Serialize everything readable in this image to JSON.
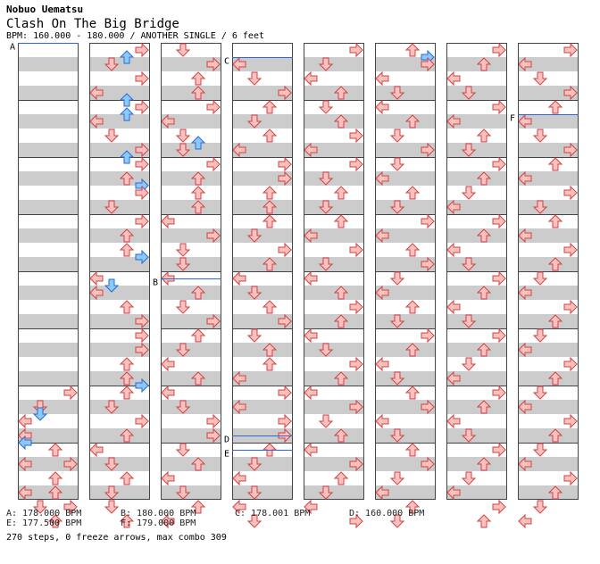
{
  "header": {
    "artist": "Nobuo Uematsu",
    "title": "Clash On The Big Bridge",
    "info": "BPM: 160.000 - 180.000 / ANOTHER SINGLE / 6 feet"
  },
  "colors": {
    "stripe_gray": "#cccccc",
    "border": "#444444",
    "red_fill": "#ffc0c0",
    "red_stroke": "#cc4444",
    "blue_fill": "#88ccff",
    "blue_stroke": "#3366cc",
    "bpm_line": "#3366cc"
  },
  "bpm_markers": [
    {
      "label": "A",
      "col": 0,
      "row": 0
    },
    {
      "label": "B",
      "col": 2,
      "row": 33
    },
    {
      "label": "C",
      "col": 3,
      "row": 2
    },
    {
      "label": "D",
      "col": 3,
      "row": 55
    },
    {
      "label": "E",
      "col": 3,
      "row": 57
    },
    {
      "label": "F",
      "col": 7,
      "row": 10
    }
  ],
  "legend": [
    {
      "text": "A: 178.000 BPM",
      "pos": 0
    },
    {
      "text": "B: 180.000 BPM",
      "pos": 1
    },
    {
      "text": "C: 178.001 BPM",
      "pos": 2
    },
    {
      "text": "D: 160.000 BPM",
      "pos": 3
    },
    {
      "text": "E: 177.500 BPM",
      "pos": 4
    },
    {
      "text": "F: 179.000 BPM",
      "pos": 5
    }
  ],
  "summary": "270 steps, 0 freeze arrows, max combo 309",
  "columns": [
    [
      [
        48,
        3
      ],
      [
        50,
        1
      ],
      [
        51,
        1
      ],
      [
        52,
        0
      ],
      [
        54,
        0
      ],
      [
        55,
        0
      ],
      [
        56,
        2
      ],
      [
        58,
        3
      ],
      [
        58,
        0
      ],
      [
        60,
        2
      ],
      [
        62,
        2
      ],
      [
        62,
        0
      ],
      [
        64,
        3
      ],
      [
        64,
        1
      ],
      [
        66,
        2
      ]
    ],
    [
      [
        0,
        3
      ],
      [
        1,
        2
      ],
      [
        2,
        1
      ],
      [
        4,
        3
      ],
      [
        6,
        0
      ],
      [
        7,
        2
      ],
      [
        8,
        3
      ],
      [
        9,
        2
      ],
      [
        10,
        0
      ],
      [
        12,
        1
      ],
      [
        14,
        3
      ],
      [
        15,
        2
      ],
      [
        16,
        3
      ],
      [
        18,
        2
      ],
      [
        19,
        3
      ],
      [
        20,
        3
      ],
      [
        22,
        1
      ],
      [
        24,
        3
      ],
      [
        26,
        2
      ],
      [
        28,
        2
      ],
      [
        29,
        3
      ],
      [
        32,
        0
      ],
      [
        33,
        1
      ],
      [
        34,
        0
      ],
      [
        36,
        2
      ],
      [
        38,
        3
      ],
      [
        40,
        3
      ],
      [
        42,
        3
      ],
      [
        44,
        2
      ],
      [
        46,
        2
      ],
      [
        47,
        3
      ],
      [
        48,
        2
      ],
      [
        50,
        1
      ],
      [
        52,
        3
      ],
      [
        54,
        2
      ],
      [
        56,
        0
      ],
      [
        58,
        1
      ],
      [
        60,
        2
      ],
      [
        62,
        1
      ],
      [
        64,
        1
      ],
      [
        66,
        2
      ]
    ],
    [
      [
        0,
        1
      ],
      [
        2,
        3
      ],
      [
        4,
        2
      ],
      [
        6,
        2
      ],
      [
        8,
        3
      ],
      [
        10,
        0
      ],
      [
        12,
        1
      ],
      [
        13,
        2
      ],
      [
        14,
        1
      ],
      [
        16,
        3
      ],
      [
        18,
        2
      ],
      [
        20,
        2
      ],
      [
        22,
        2
      ],
      [
        24,
        0
      ],
      [
        26,
        3
      ],
      [
        28,
        1
      ],
      [
        30,
        1
      ],
      [
        32,
        0
      ],
      [
        34,
        2
      ],
      [
        36,
        1
      ],
      [
        38,
        3
      ],
      [
        40,
        2
      ],
      [
        42,
        1
      ],
      [
        44,
        0
      ],
      [
        46,
        2
      ],
      [
        48,
        0
      ],
      [
        50,
        1
      ],
      [
        52,
        3
      ],
      [
        54,
        3
      ],
      [
        56,
        1
      ],
      [
        58,
        2
      ],
      [
        60,
        0
      ],
      [
        62,
        1
      ],
      [
        64,
        2
      ],
      [
        66,
        0
      ]
    ],
    [
      [
        2,
        0
      ],
      [
        4,
        1
      ],
      [
        6,
        3
      ],
      [
        8,
        2
      ],
      [
        10,
        1
      ],
      [
        12,
        2
      ],
      [
        14,
        0
      ],
      [
        16,
        3
      ],
      [
        18,
        3
      ],
      [
        20,
        2
      ],
      [
        22,
        2
      ],
      [
        24,
        2
      ],
      [
        26,
        1
      ],
      [
        28,
        3
      ],
      [
        30,
        2
      ],
      [
        32,
        0
      ],
      [
        34,
        1
      ],
      [
        36,
        2
      ],
      [
        38,
        3
      ],
      [
        40,
        1
      ],
      [
        42,
        2
      ],
      [
        44,
        2
      ],
      [
        46,
        0
      ],
      [
        48,
        3
      ],
      [
        50,
        0
      ],
      [
        52,
        3
      ],
      [
        54,
        3
      ],
      [
        56,
        2
      ],
      [
        58,
        1
      ],
      [
        60,
        0
      ],
      [
        62,
        1
      ],
      [
        64,
        0
      ],
      [
        66,
        1
      ]
    ],
    [
      [
        0,
        3
      ],
      [
        2,
        1
      ],
      [
        4,
        0
      ],
      [
        6,
        2
      ],
      [
        8,
        1
      ],
      [
        10,
        2
      ],
      [
        12,
        3
      ],
      [
        14,
        0
      ],
      [
        16,
        3
      ],
      [
        18,
        1
      ],
      [
        20,
        2
      ],
      [
        22,
        1
      ],
      [
        24,
        2
      ],
      [
        26,
        0
      ],
      [
        28,
        3
      ],
      [
        30,
        1
      ],
      [
        32,
        0
      ],
      [
        34,
        2
      ],
      [
        36,
        3
      ],
      [
        38,
        2
      ],
      [
        40,
        0
      ],
      [
        42,
        1
      ],
      [
        44,
        3
      ],
      [
        46,
        2
      ],
      [
        48,
        0
      ],
      [
        50,
        3
      ],
      [
        52,
        1
      ],
      [
        54,
        2
      ],
      [
        56,
        0
      ],
      [
        58,
        3
      ],
      [
        60,
        2
      ],
      [
        62,
        1
      ],
      [
        64,
        0
      ],
      [
        66,
        3
      ]
    ],
    [
      [
        0,
        2
      ],
      [
        1,
        3
      ],
      [
        2,
        3
      ],
      [
        4,
        0
      ],
      [
        6,
        1
      ],
      [
        8,
        0
      ],
      [
        10,
        2
      ],
      [
        12,
        1
      ],
      [
        14,
        3
      ],
      [
        16,
        1
      ],
      [
        18,
        0
      ],
      [
        20,
        2
      ],
      [
        22,
        1
      ],
      [
        24,
        3
      ],
      [
        26,
        0
      ],
      [
        28,
        2
      ],
      [
        30,
        3
      ],
      [
        32,
        1
      ],
      [
        34,
        0
      ],
      [
        36,
        2
      ],
      [
        38,
        1
      ],
      [
        40,
        3
      ],
      [
        42,
        2
      ],
      [
        44,
        0
      ],
      [
        46,
        1
      ],
      [
        48,
        2
      ],
      [
        50,
        3
      ],
      [
        52,
        0
      ],
      [
        54,
        1
      ],
      [
        56,
        2
      ],
      [
        58,
        3
      ],
      [
        60,
        1
      ],
      [
        62,
        0
      ],
      [
        64,
        2
      ],
      [
        66,
        1
      ]
    ],
    [
      [
        0,
        3
      ],
      [
        2,
        2
      ],
      [
        4,
        0
      ],
      [
        6,
        1
      ],
      [
        8,
        3
      ],
      [
        10,
        0
      ],
      [
        12,
        2
      ],
      [
        14,
        1
      ],
      [
        16,
        3
      ],
      [
        18,
        2
      ],
      [
        20,
        1
      ],
      [
        22,
        0
      ],
      [
        24,
        3
      ],
      [
        26,
        2
      ],
      [
        28,
        0
      ],
      [
        30,
        1
      ],
      [
        32,
        3
      ],
      [
        34,
        2
      ],
      [
        36,
        0
      ],
      [
        38,
        1
      ],
      [
        40,
        3
      ],
      [
        42,
        2
      ],
      [
        44,
        1
      ],
      [
        46,
        0
      ],
      [
        48,
        3
      ],
      [
        50,
        2
      ],
      [
        52,
        0
      ],
      [
        54,
        1
      ],
      [
        56,
        3
      ],
      [
        58,
        2
      ],
      [
        60,
        1
      ],
      [
        62,
        0
      ],
      [
        64,
        3
      ],
      [
        66,
        2
      ]
    ],
    [
      [
        0,
        3
      ],
      [
        2,
        0
      ],
      [
        4,
        1
      ],
      [
        6,
        3
      ],
      [
        8,
        2
      ],
      [
        10,
        0
      ],
      [
        12,
        1
      ],
      [
        14,
        3
      ],
      [
        16,
        2
      ],
      [
        18,
        0
      ],
      [
        20,
        3
      ],
      [
        22,
        1
      ],
      [
        24,
        2
      ],
      [
        26,
        0
      ],
      [
        28,
        3
      ],
      [
        30,
        2
      ],
      [
        32,
        1
      ],
      [
        34,
        0
      ],
      [
        36,
        3
      ],
      [
        38,
        2
      ],
      [
        40,
        1
      ],
      [
        42,
        0
      ],
      [
        44,
        3
      ],
      [
        46,
        2
      ],
      [
        48,
        1
      ],
      [
        50,
        0
      ],
      [
        52,
        3
      ],
      [
        54,
        2
      ],
      [
        56,
        1
      ],
      [
        58,
        0
      ],
      [
        60,
        3
      ],
      [
        62,
        2
      ],
      [
        64,
        1
      ],
      [
        66,
        0
      ]
    ]
  ]
}
